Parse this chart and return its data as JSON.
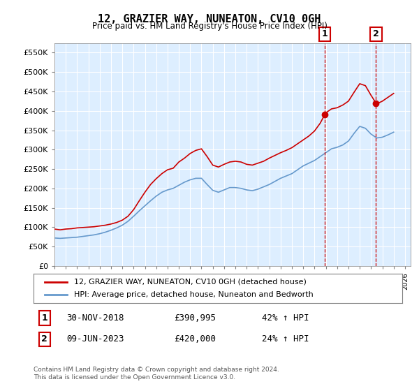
{
  "title": "12, GRAZIER WAY, NUNEATON, CV10 0GH",
  "subtitle": "Price paid vs. HM Land Registry's House Price Index (HPI)",
  "red_label": "12, GRAZIER WAY, NUNEATON, CV10 0GH (detached house)",
  "blue_label": "HPI: Average price, detached house, Nuneaton and Bedworth",
  "point1_label": "1",
  "point1_date": "30-NOV-2018",
  "point1_price": "£390,995",
  "point1_hpi": "42% ↑ HPI",
  "point2_label": "2",
  "point2_date": "09-JUN-2023",
  "point2_price": "£420,000",
  "point2_hpi": "24% ↑ HPI",
  "footer": "Contains HM Land Registry data © Crown copyright and database right 2024.\nThis data is licensed under the Open Government Licence v3.0.",
  "ylim": [
    0,
    575000
  ],
  "yticks": [
    0,
    50000,
    100000,
    150000,
    200000,
    250000,
    300000,
    350000,
    400000,
    450000,
    500000,
    550000
  ],
  "xlim_start": 1995.0,
  "xlim_end": 2026.5,
  "red_color": "#cc0000",
  "blue_color": "#6699cc",
  "bg_color": "#ddeeff",
  "point1_x": 2018.92,
  "point1_y": 390995,
  "point2_x": 2023.44,
  "point2_y": 420000,
  "red_x": [
    1995.0,
    1995.5,
    1996.0,
    1996.5,
    1997.0,
    1997.5,
    1998.0,
    1998.5,
    1999.0,
    1999.5,
    2000.0,
    2000.5,
    2001.0,
    2001.5,
    2002.0,
    2002.5,
    2003.0,
    2003.5,
    2004.0,
    2004.5,
    2005.0,
    2005.5,
    2006.0,
    2006.5,
    2007.0,
    2007.5,
    2008.0,
    2008.5,
    2009.0,
    2009.5,
    2010.0,
    2010.5,
    2011.0,
    2011.5,
    2012.0,
    2012.5,
    2013.0,
    2013.5,
    2014.0,
    2014.5,
    2015.0,
    2015.5,
    2016.0,
    2016.5,
    2017.0,
    2017.5,
    2018.0,
    2018.5,
    2018.92,
    2019.0,
    2019.5,
    2020.0,
    2020.5,
    2021.0,
    2021.5,
    2022.0,
    2022.5,
    2023.0,
    2023.44,
    2023.5,
    2024.0,
    2024.5,
    2025.0
  ],
  "red_y": [
    95000,
    93000,
    95000,
    96000,
    98000,
    99000,
    100000,
    101000,
    103000,
    105000,
    108000,
    112000,
    118000,
    128000,
    145000,
    168000,
    190000,
    210000,
    225000,
    238000,
    248000,
    252000,
    268000,
    278000,
    290000,
    298000,
    302000,
    282000,
    260000,
    255000,
    262000,
    268000,
    270000,
    268000,
    262000,
    260000,
    265000,
    270000,
    278000,
    285000,
    292000,
    298000,
    305000,
    315000,
    325000,
    335000,
    348000,
    368000,
    390995,
    395000,
    405000,
    408000,
    415000,
    425000,
    448000,
    470000,
    465000,
    440000,
    420000,
    418000,
    425000,
    435000,
    445000
  ],
  "blue_x": [
    1995.0,
    1995.5,
    1996.0,
    1996.5,
    1997.0,
    1997.5,
    1998.0,
    1998.5,
    1999.0,
    1999.5,
    2000.0,
    2000.5,
    2001.0,
    2001.5,
    2002.0,
    2002.5,
    2003.0,
    2003.5,
    2004.0,
    2004.5,
    2005.0,
    2005.5,
    2006.0,
    2006.5,
    2007.0,
    2007.5,
    2008.0,
    2008.5,
    2009.0,
    2009.5,
    2010.0,
    2010.5,
    2011.0,
    2011.5,
    2012.0,
    2012.5,
    2013.0,
    2013.5,
    2014.0,
    2014.5,
    2015.0,
    2015.5,
    2016.0,
    2016.5,
    2017.0,
    2017.5,
    2018.0,
    2018.5,
    2019.0,
    2019.5,
    2020.0,
    2020.5,
    2021.0,
    2021.5,
    2022.0,
    2022.5,
    2023.0,
    2023.5,
    2024.0,
    2024.5,
    2025.0
  ],
  "blue_y": [
    72000,
    71000,
    72000,
    73000,
    74000,
    76000,
    78000,
    80000,
    83000,
    87000,
    92000,
    98000,
    105000,
    115000,
    128000,
    142000,
    155000,
    168000,
    180000,
    190000,
    196000,
    200000,
    208000,
    216000,
    222000,
    226000,
    226000,
    210000,
    195000,
    190000,
    196000,
    202000,
    202000,
    200000,
    196000,
    194000,
    198000,
    204000,
    210000,
    218000,
    226000,
    232000,
    238000,
    248000,
    258000,
    265000,
    272000,
    282000,
    292000,
    302000,
    306000,
    312000,
    322000,
    342000,
    360000,
    355000,
    340000,
    330000,
    332000,
    338000,
    345000
  ]
}
